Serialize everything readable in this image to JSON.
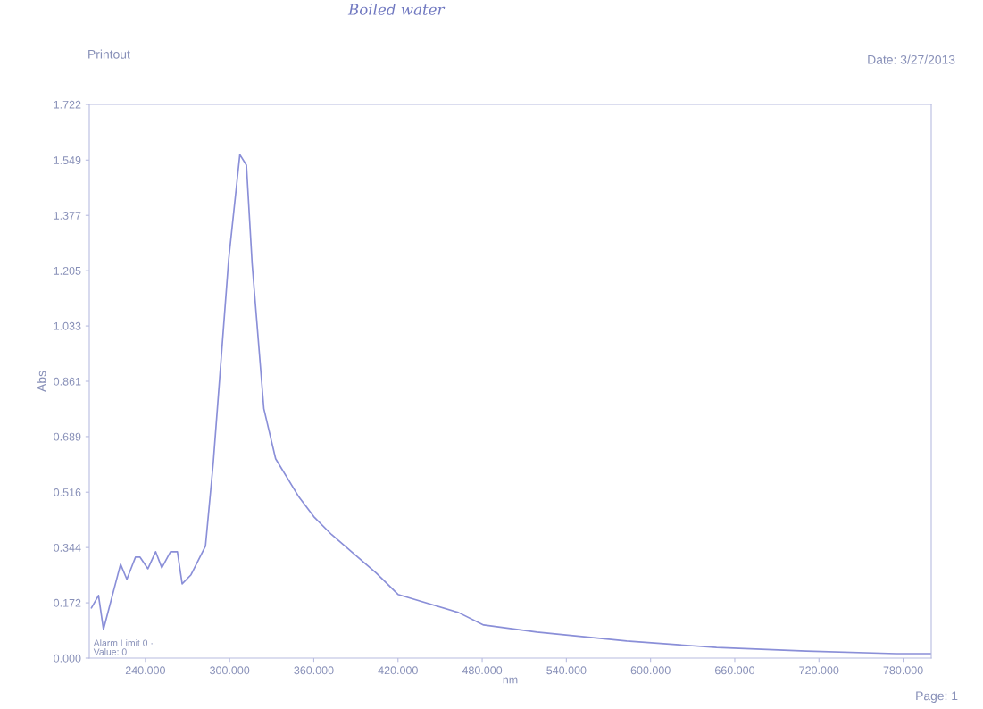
{
  "chart_data": {
    "type": "line",
    "title": "Boiled water",
    "subtitle": "Printout",
    "xlabel": "nm",
    "ylabel": "Abs",
    "annotations": [
      "Date: 3/27/2013",
      "Alarm Limit 0 ·",
      "Value: 0",
      "Page: 1"
    ],
    "x": [
      201.5,
      206.6,
      210.1,
      222.3,
      226.8,
      232.9,
      236.2,
      241.8,
      247.3,
      251.7,
      257.9,
      262.8,
      266.2,
      272.5,
      282.8,
      288.4,
      299.3,
      307.3,
      312.0,
      316.1,
      324.4,
      332.8,
      349.4,
      360,
      372.7,
      404.6,
      420,
      463,
      481,
      519,
      583,
      647,
      711,
      775,
      800
    ],
    "series": [
      {
        "color": "#8a8fd8",
        "values": [
          0.156,
          0.195,
          0.089,
          0.292,
          0.245,
          0.314,
          0.314,
          0.278,
          0.331,
          0.281,
          0.331,
          0.331,
          0.231,
          0.259,
          0.348,
          0.609,
          1.238,
          1.566,
          1.533,
          1.224,
          0.776,
          0.62,
          0.501,
          0.44,
          0.384,
          0.264,
          0.198,
          0.142,
          0.103,
          0.081,
          0.053,
          0.033,
          0.022,
          0.014,
          0.014
        ]
      }
    ],
    "xlim": [
      200,
      800
    ],
    "ylim": [
      0,
      1.722
    ],
    "xticks": [
      {
        "value": 240,
        "label": "240.000"
      },
      {
        "value": 300,
        "label": "300.000"
      },
      {
        "value": 360,
        "label": "360.000"
      },
      {
        "value": 420,
        "label": "420.000"
      },
      {
        "value": 480,
        "label": "480.000"
      },
      {
        "value": 540,
        "label": "540.000"
      },
      {
        "value": 600,
        "label": "600.000"
      },
      {
        "value": 660,
        "label": "660.000"
      },
      {
        "value": 720,
        "label": "720.000"
      },
      {
        "value": 780,
        "label": "780.000"
      }
    ],
    "yticks": [
      {
        "value": 0,
        "label": "0.000"
      },
      0.172,
      0.344,
      0.516,
      {
        "value": 0.689,
        "label": "0.689"
      },
      0.861,
      1.033,
      1.205,
      1.377,
      1.549,
      1.722
    ],
    "grid": false,
    "legend": false,
    "marker": "none",
    "line_style": "solid"
  }
}
